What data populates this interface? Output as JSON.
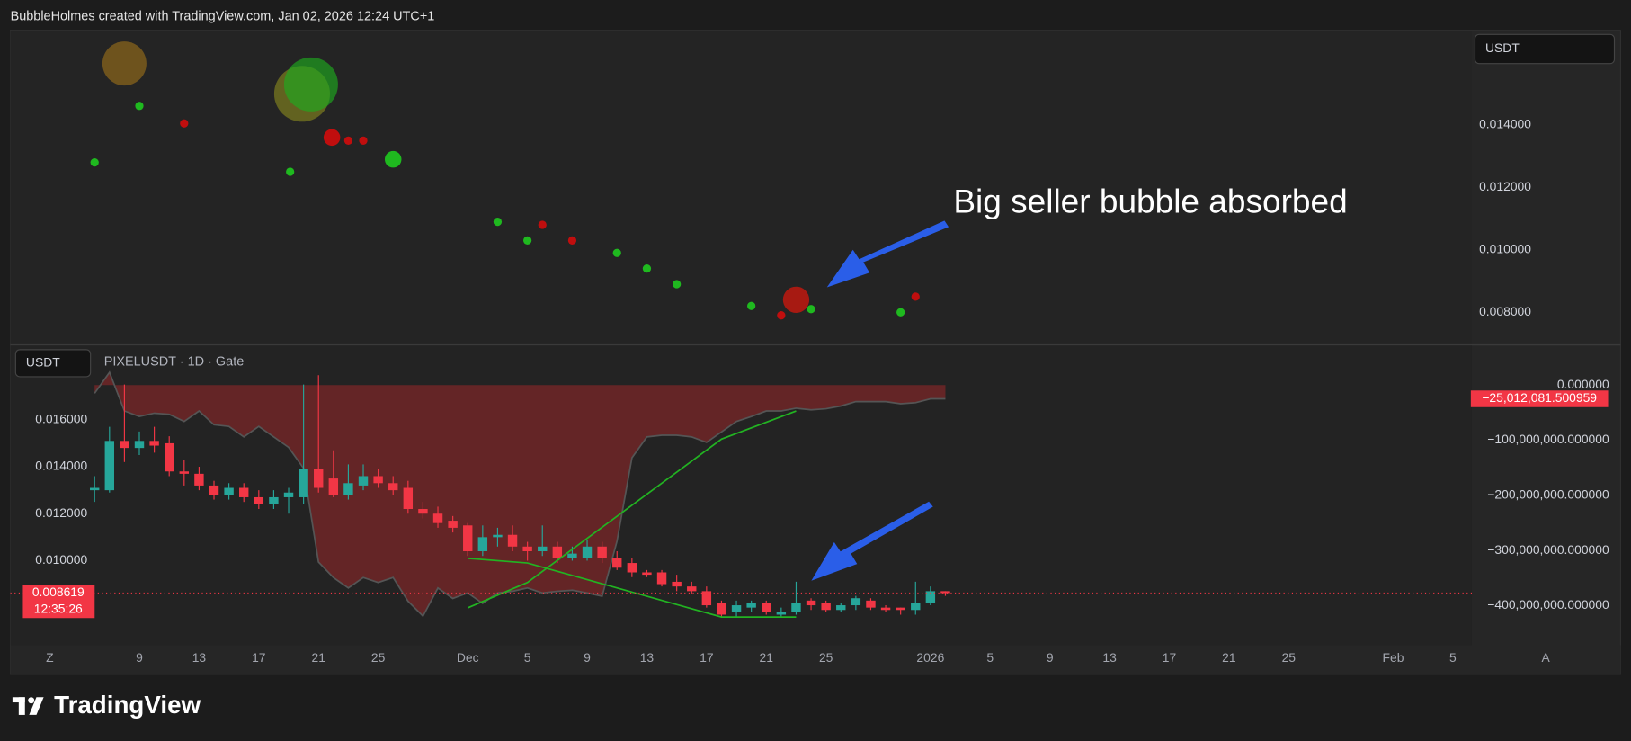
{
  "header": {
    "text": "BubbleHolmes created with TradingView.com, Jan 02, 2026 12:24 UTC+1"
  },
  "chart_data": [
    {
      "type": "bubble",
      "currency": "USDT",
      "annotation": "Big seller bubble absorbed",
      "xlim": [
        0.36,
        98.27
      ],
      "ylim": [
        0.007,
        0.017
      ],
      "yticks": [
        {
          "value": 0.008,
          "label": "0.008000"
        },
        {
          "value": 0.01,
          "label": "0.010000"
        },
        {
          "value": 0.012,
          "label": "0.012000"
        },
        {
          "value": 0.014,
          "label": "0.014000"
        }
      ],
      "grid": false,
      "x": [
        8,
        9,
        12,
        6,
        19.9,
        20.5,
        19.1,
        21.9,
        23,
        24,
        26,
        33,
        35,
        36,
        38,
        41,
        43,
        45,
        50,
        52,
        53,
        54,
        60,
        61
      ],
      "values": [
        0.01597,
        0.01461,
        0.01405,
        0.0128,
        0.015,
        0.0153,
        0.0125,
        0.0136,
        0.0135,
        0.0135,
        0.0129,
        0.0109,
        0.0103,
        0.0108,
        0.0103,
        0.0099,
        0.0094,
        0.0089,
        0.0082,
        0.0079,
        0.0084,
        0.0081,
        0.008,
        0.0085
      ],
      "sizes": [
        28,
        1,
        1,
        1,
        45,
        42,
        1,
        4,
        1,
        1,
        4,
        1,
        1,
        1,
        1,
        1,
        1,
        1,
        1,
        1,
        10,
        1,
        1,
        1
      ],
      "colors": [
        "rgba(160,115,25,0.6)",
        "#1fb91f",
        "#c00e0e",
        "#1fb91f",
        "rgba(140,140,30,0.6)",
        "rgba(30,170,30,0.65)",
        "#1fb91f",
        "#c00e0e",
        "#c00e0e",
        "#c00e0e",
        "#1fb91f",
        "#1fb91f",
        "#1fb91f",
        "#c00e0e",
        "#c00e0e",
        "#1fb91f",
        "#1fb91f",
        "#1fb91f",
        "#1fb91f",
        "#c00e0e",
        "rgba(190,25,15,0.85)",
        "#1fb91f",
        "#1fb91f",
        "#c00e0e"
      ]
    },
    {
      "type": "candlestick",
      "currency": "USDT",
      "title": "PIXELUSDT · 1D · Gate",
      "scale_button": "A",
      "xlim": [
        0.36,
        98.27
      ],
      "xticks": [
        {
          "value": 3,
          "label": "Z"
        },
        9,
        13,
        17,
        21,
        25,
        {
          "value": 31,
          "label": "Dec"
        },
        {
          "value": 35,
          "label": "5"
        },
        {
          "value": 39,
          "label": "9"
        },
        {
          "value": 43,
          "label": "13"
        },
        {
          "value": 47,
          "label": "17"
        },
        {
          "value": 51,
          "label": "21"
        },
        {
          "value": 55,
          "label": "25"
        },
        {
          "value": 62,
          "label": "2026"
        },
        {
          "value": 66,
          "label": "5"
        },
        {
          "value": 70,
          "label": "9"
        },
        {
          "value": 74,
          "label": "13"
        },
        {
          "value": 78,
          "label": "17"
        },
        {
          "value": 82,
          "label": "21"
        },
        {
          "value": 86,
          "label": "25"
        },
        {
          "value": 93,
          "label": "Feb"
        },
        {
          "value": 97,
          "label": "5"
        }
      ],
      "ylim": [
        0.0064,
        0.0181
      ],
      "yticks": [
        {
          "value": 0.01,
          "label": "0.010000"
        },
        {
          "value": 0.012,
          "label": "0.012000"
        },
        {
          "value": 0.014,
          "label": "0.014000"
        },
        {
          "value": 0.016,
          "label": "0.016000"
        }
      ],
      "y2lim": [
        -471700000,
        26400000
      ],
      "y2ticks": [
        {
          "value": -400000000,
          "label": "−400,000,000.000000"
        },
        {
          "value": -300000000,
          "label": "−300,000,000.000000"
        },
        {
          "value": -200000000,
          "label": "−200,000,000.000000"
        },
        {
          "value": -100000000,
          "label": "−100,000,000.000000"
        },
        {
          "value": 0,
          "label": "0.000000"
        }
      ],
      "grid": false,
      "up_color": "#26a69a",
      "down_color": "#f23645",
      "x": [
        6,
        7,
        8,
        9,
        10,
        11,
        12,
        13,
        14,
        15,
        16,
        17,
        18,
        19,
        20,
        21,
        22,
        23,
        24,
        25,
        26,
        27,
        28,
        29,
        30,
        31,
        32,
        33,
        34,
        35,
        36,
        37,
        38,
        39,
        40,
        41,
        42,
        43,
        44,
        45,
        46,
        47,
        48,
        49,
        50,
        51,
        52,
        53,
        54,
        55,
        56,
        57,
        58,
        59,
        60,
        61,
        62,
        63
      ],
      "open": [
        0.013,
        0.013,
        0.0151,
        0.0148,
        0.0151,
        0.015,
        0.0138,
        0.0137,
        0.0132,
        0.0128,
        0.0131,
        0.0127,
        0.0124,
        0.0127,
        0.0127,
        0.0139,
        0.0135,
        0.0128,
        0.0132,
        0.0136,
        0.0133,
        0.0131,
        0.0122,
        0.012,
        0.0117,
        0.0115,
        0.0104,
        0.011,
        0.0111,
        0.0106,
        0.0104,
        0.0106,
        0.0101,
        0.0101,
        0.0106,
        0.0101,
        0.0099,
        0.0095,
        0.0095,
        0.0091,
        0.0089,
        0.0087,
        0.0082,
        0.0078,
        0.008,
        0.0082,
        0.0077,
        0.0078,
        0.0083,
        0.0082,
        0.0079,
        0.0081,
        0.0083,
        0.008,
        0.008,
        0.0079,
        0.0082,
        0.0087
      ],
      "high": [
        0.0136,
        0.0157,
        0.0175,
        0.0155,
        0.0157,
        0.0153,
        0.0143,
        0.014,
        0.0134,
        0.0133,
        0.0133,
        0.013,
        0.013,
        0.0131,
        0.0175,
        0.0179,
        0.0147,
        0.0141,
        0.0141,
        0.0139,
        0.0136,
        0.0134,
        0.0125,
        0.0123,
        0.0119,
        0.0116,
        0.0115,
        0.0114,
        0.0115,
        0.0108,
        0.0115,
        0.0108,
        0.0106,
        0.0109,
        0.0108,
        0.0104,
        0.0101,
        0.0096,
        0.0096,
        0.0094,
        0.0091,
        0.0089,
        0.0083,
        0.0083,
        0.0083,
        0.0083,
        0.008,
        0.0091,
        0.0084,
        0.0083,
        0.0082,
        0.0085,
        0.0084,
        0.0081,
        0.008,
        0.0091,
        0.0089,
        0.0087
      ],
      "low": [
        0.0125,
        0.0129,
        0.0142,
        0.0145,
        0.0146,
        0.0136,
        0.0132,
        0.013,
        0.0126,
        0.0126,
        0.0125,
        0.0122,
        0.0122,
        0.012,
        0.0124,
        0.0129,
        0.0127,
        0.0126,
        0.013,
        0.0131,
        0.0128,
        0.012,
        0.0118,
        0.0114,
        0.0112,
        0.0102,
        0.0102,
        0.0106,
        0.0104,
        0.01,
        0.0102,
        0.0099,
        0.01,
        0.01,
        0.0099,
        0.0096,
        0.0093,
        0.0093,
        0.0089,
        0.0087,
        0.0086,
        0.008,
        0.0076,
        0.0076,
        0.0078,
        0.0077,
        0.0076,
        0.0077,
        0.0079,
        0.0078,
        0.0078,
        0.0079,
        0.0079,
        0.0078,
        0.0077,
        0.0077,
        0.0081,
        0.0085
      ],
      "close": [
        0.0131,
        0.0151,
        0.0148,
        0.0151,
        0.0149,
        0.0138,
        0.0137,
        0.0132,
        0.0128,
        0.0131,
        0.0127,
        0.0124,
        0.0127,
        0.0129,
        0.0139,
        0.0131,
        0.0128,
        0.0133,
        0.0136,
        0.0133,
        0.013,
        0.0122,
        0.012,
        0.0116,
        0.0114,
        0.0104,
        0.011,
        0.0111,
        0.0106,
        0.0104,
        0.0106,
        0.0101,
        0.0103,
        0.0106,
        0.0101,
        0.0097,
        0.0095,
        0.0094,
        0.009,
        0.0089,
        0.0087,
        0.0081,
        0.0077,
        0.0081,
        0.0082,
        0.0078,
        0.0078,
        0.0082,
        0.0081,
        0.0079,
        0.0081,
        0.0084,
        0.008,
        0.0079,
        0.0079,
        0.0082,
        0.0087,
        0.008619
      ],
      "series": [
        {
          "type": "area",
          "axis": "y2",
          "color": "rgba(128,38,40,0.7)",
          "line_color": "#555555",
          "x": [
            6,
            7,
            8,
            9,
            10,
            11,
            12,
            13,
            14,
            15,
            16,
            17,
            18,
            19,
            20,
            21,
            22,
            23,
            24,
            25,
            26,
            27,
            28,
            29,
            30,
            31,
            32,
            33,
            34,
            35,
            36,
            37,
            38,
            39,
            40,
            41,
            42,
            43,
            44,
            45,
            46,
            47,
            48,
            49,
            50,
            51,
            52,
            53,
            54,
            55,
            56,
            57,
            58,
            59,
            60,
            61,
            62,
            63
          ],
          "values": [
            -15000000,
            23000000,
            -47000000,
            -57000000,
            -51000000,
            -53000000,
            -66000000,
            -47000000,
            -72000000,
            -75000000,
            -94000000,
            -75000000,
            -94000000,
            -113000000,
            -151000000,
            -321000000,
            -349000000,
            -368000000,
            -349000000,
            -358000000,
            -349000000,
            -392000000,
            -419000000,
            -368000000,
            -387000000,
            -377000000,
            -396000000,
            -377000000,
            -374000000,
            -368000000,
            -377000000,
            -374000000,
            -372000000,
            -377000000,
            -383000000,
            -283000000,
            -132000000,
            -94000000,
            -91000000,
            -91000000,
            -94000000,
            -104000000,
            -85000000,
            -66000000,
            -57000000,
            -47000000,
            -47000000,
            -42000000,
            -45000000,
            -43000000,
            -38000000,
            -30000000,
            -30000000,
            -30000000,
            -34000000,
            -32000000,
            -25000000,
            -25012081.500959
          ]
        },
        {
          "type": "line",
          "color": "#22b322",
          "x": [
            31,
            35,
            48,
            53
          ],
          "values": [
            0.0101,
            0.0099,
            0.0076,
            0.0076
          ]
        },
        {
          "type": "line",
          "axis": "y2",
          "color": "#22b322",
          "x": [
            31,
            35,
            48,
            53
          ],
          "values": [
            -404000000,
            -358000000,
            -98000000,
            -47000000
          ]
        }
      ],
      "price_marker": {
        "value": 0.008619,
        "label": "0.008619",
        "countdown": "12:35:26",
        "color": "#f23645"
      },
      "delta_marker": {
        "value": -25012081.500959,
        "label": "−25,012,081.500959",
        "color": "#f23645"
      }
    }
  ],
  "footer": {
    "logo": "TradingView"
  }
}
